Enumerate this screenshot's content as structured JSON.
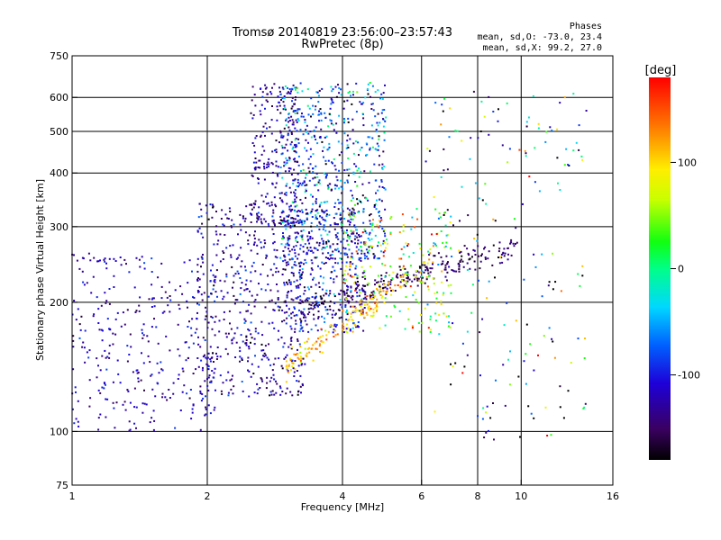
{
  "chart_data": {
    "type": "scatter",
    "title_line1": "Tromsø 20140819 23:56:00–23:57:43",
    "title_line2": "RwPretec (8p)",
    "phase_box": {
      "heading": "Phases",
      "line_o": "mean, sd,O:  -73.0, 23.4",
      "line_x": "mean, sd,X:   99.2, 27.0"
    },
    "xlabel": "Frequency [MHz]",
    "ylabel": "Stationary phase Virtual Height [km]",
    "xscale": "log",
    "yscale": "log",
    "xlim": [
      1,
      16
    ],
    "ylim": [
      75,
      750
    ],
    "x_ticks": [
      1,
      2,
      4,
      6,
      8,
      10,
      16
    ],
    "x_tick_labels": [
      "1",
      "2",
      "4",
      "6",
      "8",
      "10",
      "16"
    ],
    "y_ticks": [
      75,
      100,
      200,
      300,
      400,
      500,
      600,
      750
    ],
    "y_tick_labels": [
      "75",
      "100",
      "200",
      "300",
      "400",
      "500",
      "600",
      "750"
    ],
    "x_grid": [
      2,
      4,
      6,
      8,
      10
    ],
    "y_grid": [
      100,
      200,
      300,
      400,
      500,
      600
    ],
    "grid": true,
    "colorbar": {
      "label": "[deg]",
      "range": [
        -180,
        180
      ],
      "ticks": [
        100,
        0,
        -100
      ],
      "tick_labels": [
        "100",
        "0",
        "-100"
      ]
    },
    "clusters": [
      {
        "name": "o-lower",
        "fmin": 1.0,
        "fmax": 2.1,
        "hmin": 100,
        "hmax": 260,
        "phase": -120,
        "spread": 20,
        "count": 330
      },
      {
        "name": "o-mid",
        "fmin": 1.9,
        "fmax": 3.3,
        "hmin": 120,
        "hmax": 340,
        "phase": -125,
        "spread": 25,
        "count": 520
      },
      {
        "name": "o-upper-left",
        "fmin": 2.5,
        "fmax": 3.2,
        "hmin": 300,
        "hmax": 650,
        "phase": -125,
        "spread": 18,
        "count": 220
      },
      {
        "name": "o-upper",
        "fmin": 2.9,
        "fmax": 5.0,
        "hmin": 250,
        "hmax": 650,
        "phase": -80,
        "spread": 55,
        "count": 620
      },
      {
        "name": "o-mid-right",
        "fmin": 3.0,
        "fmax": 4.5,
        "hmin": 170,
        "hmax": 330,
        "phase": -110,
        "spread": 30,
        "count": 380
      },
      {
        "name": "trace-o",
        "fmin": 3.2,
        "fmax": 9.8,
        "hmin": 195,
        "hmax": 270,
        "phase": -150,
        "spread": 15,
        "count": 260,
        "band": true
      },
      {
        "name": "x-trace",
        "fmin": 3.0,
        "fmax": 5.5,
        "hmin": 140,
        "hmax": 230,
        "phase": 115,
        "spread": 25,
        "count": 160,
        "band": true
      },
      {
        "name": "x-cloud",
        "fmin": 4.0,
        "fmax": 7.0,
        "hmin": 170,
        "hmax": 330,
        "phase": 60,
        "spread": 60,
        "count": 220
      },
      {
        "name": "scatter-right",
        "fmin": 6.0,
        "fmax": 14.0,
        "hmin": 95,
        "hmax": 620,
        "phase": -40,
        "spread": 110,
        "count": 190
      }
    ]
  }
}
